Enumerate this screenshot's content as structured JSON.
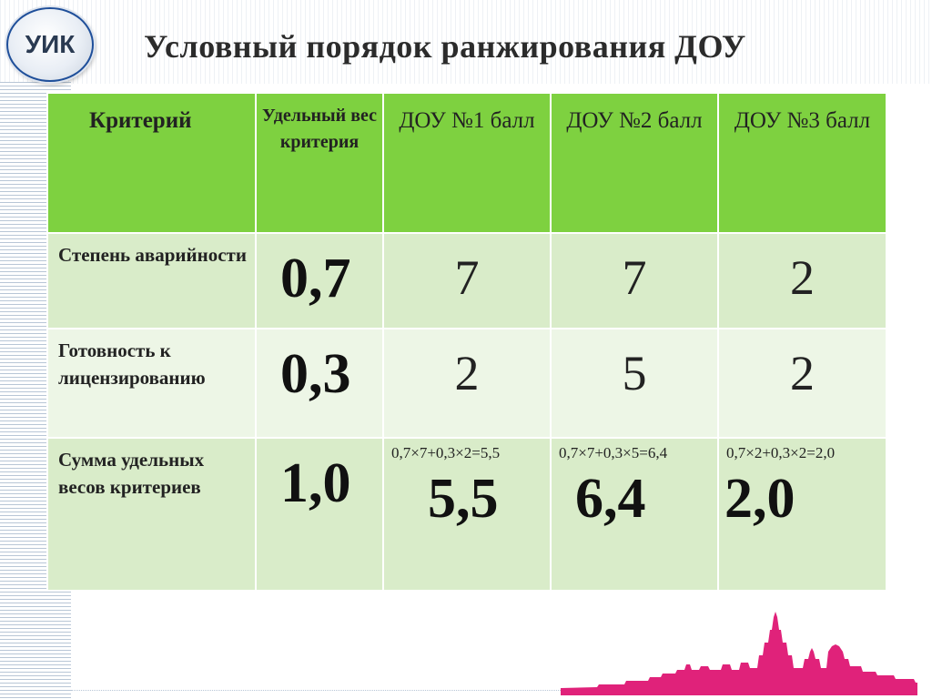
{
  "logo": {
    "text": "УИК"
  },
  "title": "Условный порядок ранжирования ДОУ",
  "table": {
    "headers": [
      "Критерий",
      "Удельный вес критерия",
      "ДОУ №1 балл",
      "ДОУ №2 балл",
      "ДОУ №3 балл"
    ],
    "rows": [
      {
        "criterion": "Степень аварийности",
        "weight": "0,7",
        "scores": [
          "7",
          "7",
          "2"
        ]
      },
      {
        "criterion": "Готовность к лицензированию",
        "weight": "0,3",
        "scores": [
          "2",
          "5",
          "2"
        ]
      }
    ],
    "total": {
      "criterion": "Сумма удельных весов критериев",
      "weight": "1,0",
      "formulas": [
        "0,7×7+0,3×2=5,5",
        "0,7×7+0,3×5=6,4",
        "0,7×2+0,3×2=2,0"
      ],
      "values": [
        "5,5",
        "6,4",
        "2,0"
      ]
    }
  },
  "colors": {
    "header_green": "#7ed140",
    "row_light": "#d9ecc9",
    "row_lighter": "#edf6e6",
    "skyline_magenta": "#e0227a",
    "logo_border": "#1f4f9a"
  }
}
